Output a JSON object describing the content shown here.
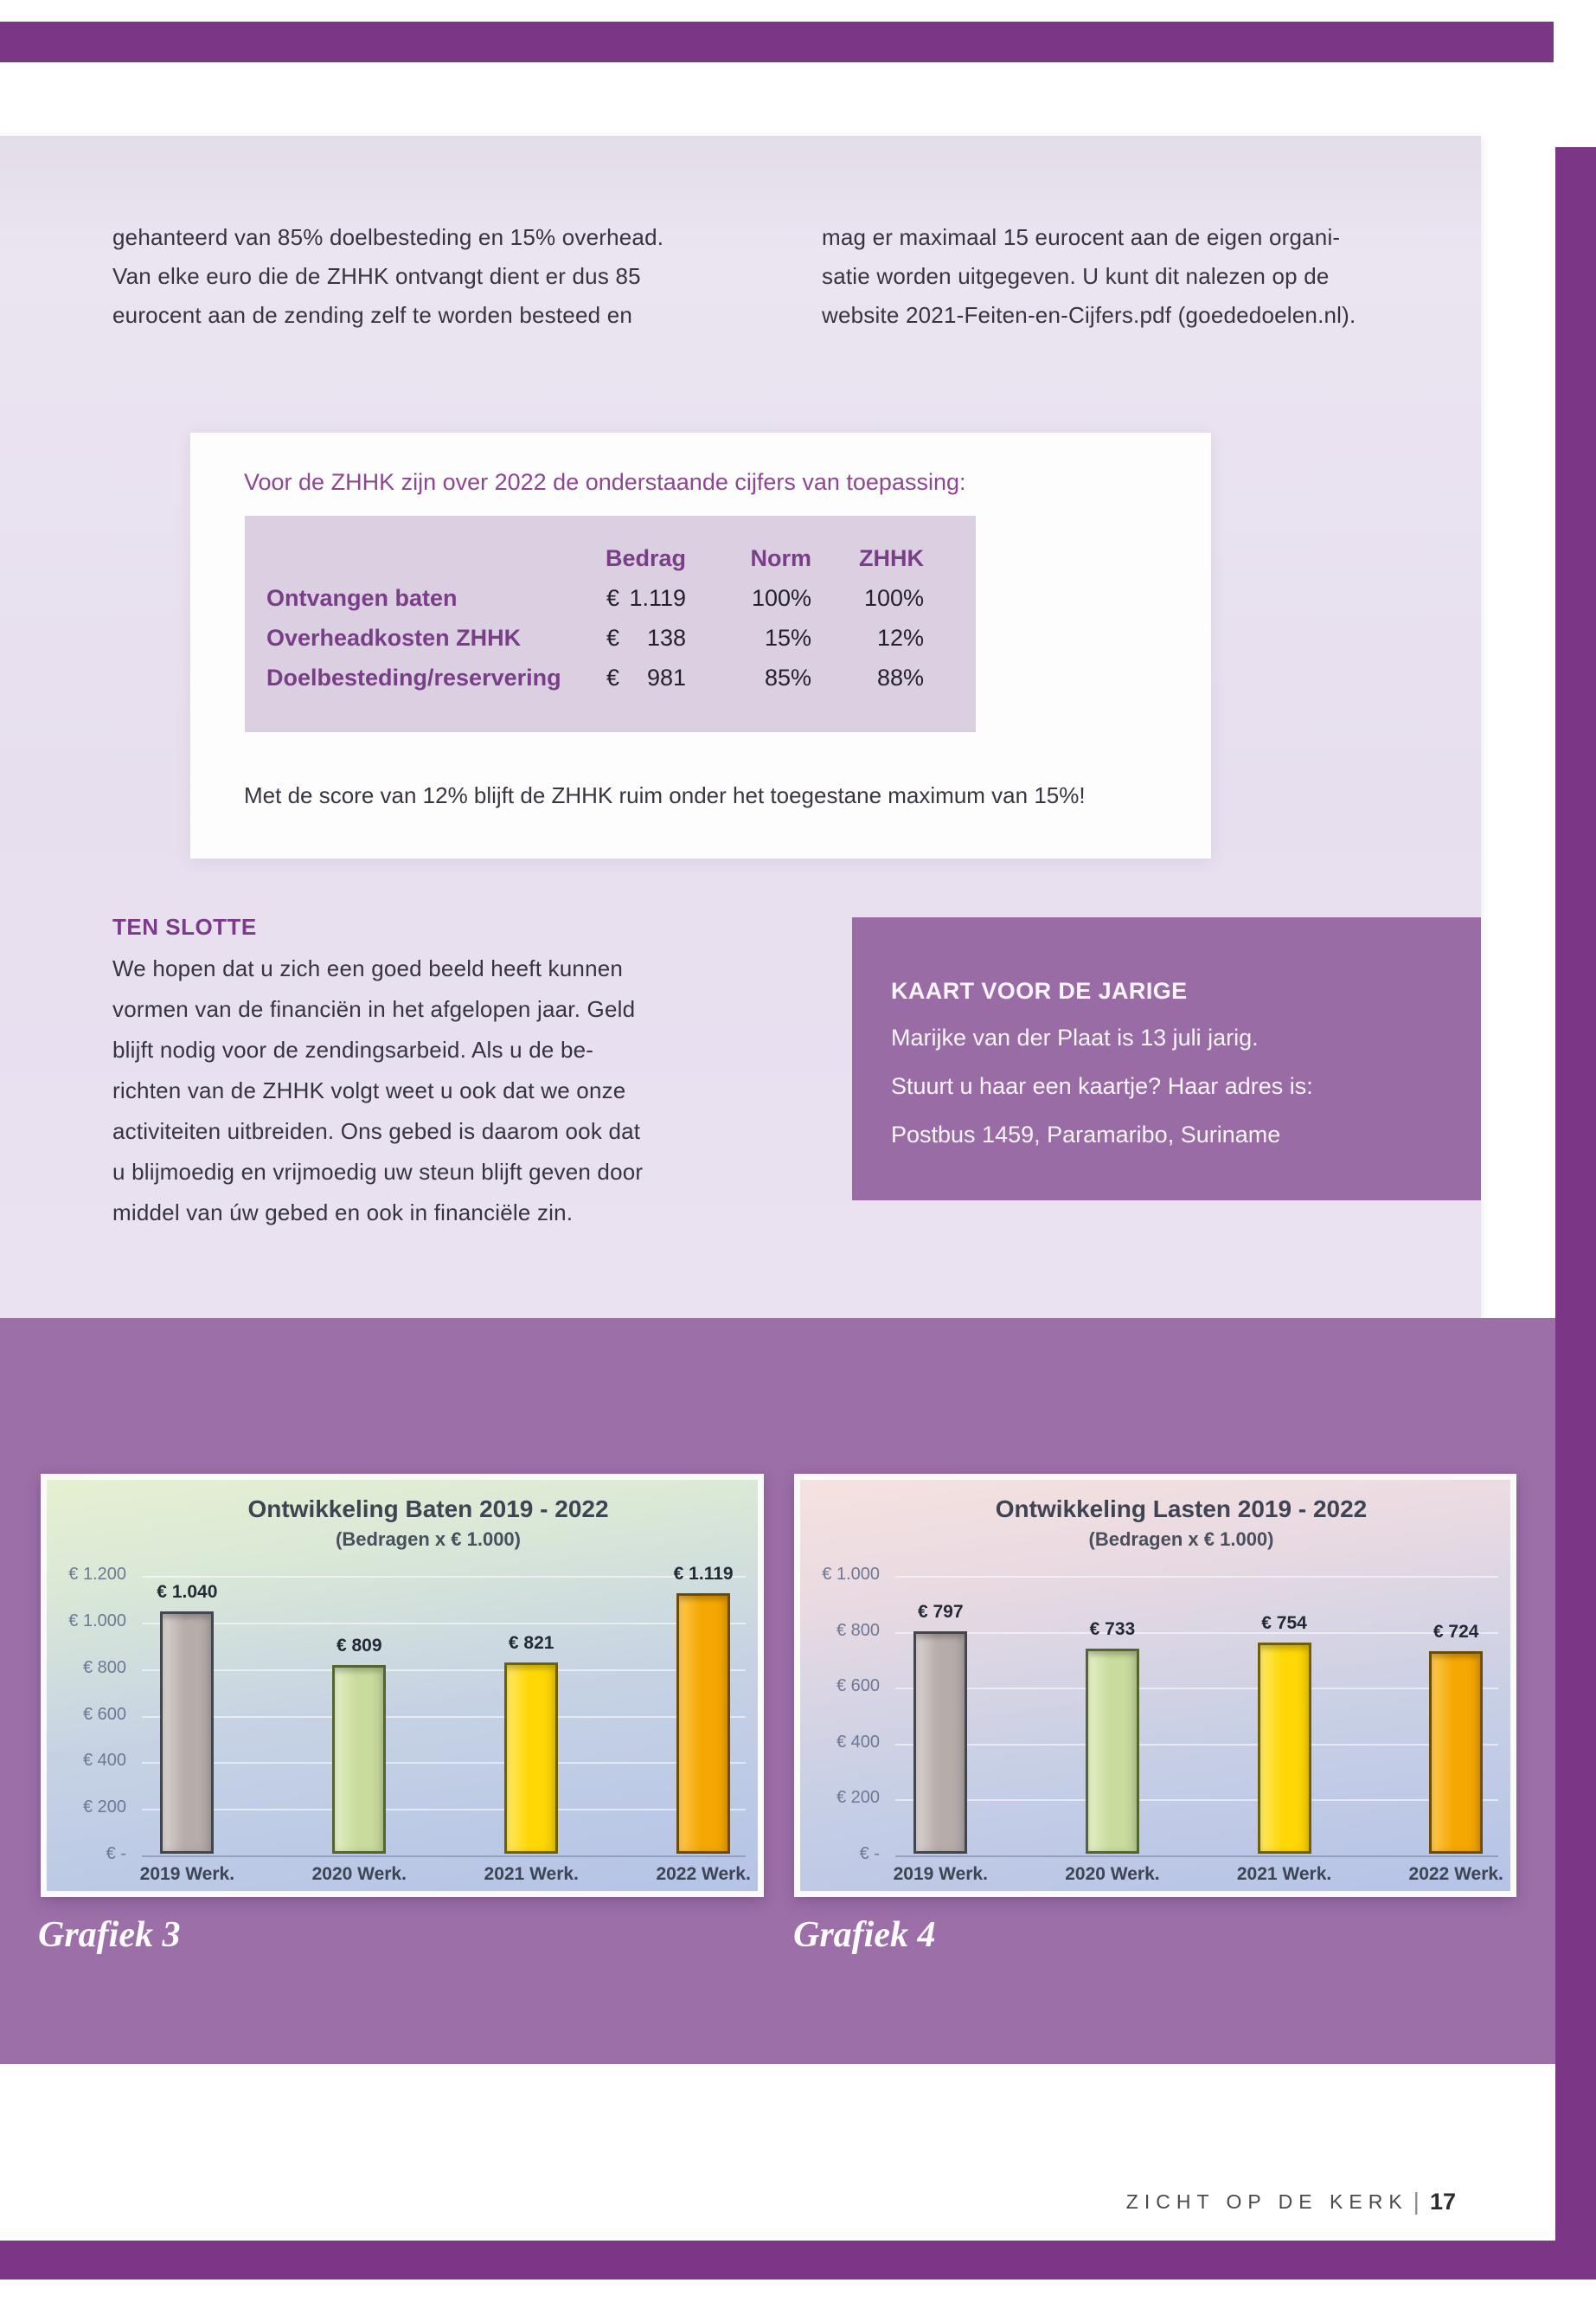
{
  "colors": {
    "accent_dark": "#7b3685",
    "accent_mid_band": "#9d6fa9",
    "kaart_box_bg": "#9a6ca5",
    "panel_bg": "#e8e1ef",
    "table_bg": "#dbd0e2",
    "heading_purple": "#8d4791",
    "label_purple": "#7a3d88",
    "text_dark": "#38333f"
  },
  "intro": {
    "left_lines": [
      "gehanteerd van 85% doelbesteding en 15% overhead.",
      "Van elke euro die de ZHHK ontvangt dient er dus 85",
      "eurocent aan de zending zelf te worden besteed en"
    ],
    "right_lines": [
      "mag er maximaal 15 eurocent aan de eigen organi-",
      "satie worden uitgegeven. U kunt dit nalezen op de",
      "website 2021-Feiten-en-Cijfers.pdf (goededoelen.nl)."
    ]
  },
  "info_box": {
    "heading": "Voor de ZHHK zijn over 2022 de onderstaande cijfers van toepassing:",
    "table": {
      "currency": "€",
      "columns": [
        "Bedrag",
        "Norm",
        "ZHHK"
      ],
      "rows": [
        {
          "label": "Ontvangen baten",
          "bedrag": "1.119",
          "norm": "100%",
          "zhhk": "100%"
        },
        {
          "label": "Overheadkosten ZHHK",
          "bedrag": "138",
          "norm": "15%",
          "zhhk": "12%"
        },
        {
          "label": "Doelbesteding/reservering",
          "bedrag": "981",
          "norm": "85%",
          "zhhk": "88%"
        }
      ]
    },
    "note": "Met de score van 12% blijft de ZHHK ruim onder het toegestane maximum van 15%!"
  },
  "ten_slotte": {
    "heading": "TEN SLOTTE",
    "lines": [
      "We hopen dat u zich een goed beeld heeft kunnen",
      "vormen van de financiën in het afgelopen jaar. Geld",
      "blijft nodig voor de zendingsarbeid. Als u de be-",
      "richten van de ZHHK volgt weet u ook dat we onze",
      "activiteiten uitbreiden. Ons gebed is daarom ook dat",
      "u blijmoedig en vrijmoedig uw steun blijft geven door",
      "middel van úw gebed en ook in financiële zin."
    ]
  },
  "kaart": {
    "heading": "KAART VOOR DE JARIGE",
    "lines": [
      "Marijke van der Plaat is 13 juli jarig.",
      "Stuurt u haar een kaartje? Haar adres is:",
      "Postbus 1459, Paramaribo, Suriname"
    ]
  },
  "chart_data": [
    {
      "type": "bar",
      "title": "Ontwikkeling Baten 2019 - 2022",
      "subtitle": "(Bedragen x € 1.000)",
      "caption": "Grafiek 3",
      "xlabel": "",
      "ylabel": "",
      "grid": true,
      "legend": "none",
      "categories": [
        "2019 Werk.",
        "2020 Werk.",
        "2021 Werk.",
        "2022 Werk."
      ],
      "values": [
        1040,
        809,
        821,
        1119
      ],
      "value_labels": [
        "€ 1.040",
        "€ 809",
        "€ 821",
        "€ 1.119"
      ],
      "ylim": [
        0,
        1200
      ],
      "y_ticks": [
        {
          "label": "€ 1.200",
          "value": 1200
        },
        {
          "label": "€ 1.000",
          "value": 1000
        },
        {
          "label": "€ 800",
          "value": 800
        },
        {
          "label": "€ 600",
          "value": 600
        },
        {
          "label": "€ 400",
          "value": 400
        },
        {
          "label": "€ 200",
          "value": 200
        },
        {
          "label": "€ -",
          "value": 0
        }
      ],
      "bar_colors": [
        {
          "fill": "#b6adaa",
          "edge": "#42464f",
          "hi": "#d9d3cf"
        },
        {
          "fill": "#c9dc9e",
          "edge": "#55652e",
          "hi": "#e4efc6"
        },
        {
          "fill": "#ffd806",
          "edge": "#6f6005",
          "hi": "#ffe763"
        },
        {
          "fill": "#f5a802",
          "edge": "#6e4b04",
          "hi": "#fdc84e"
        }
      ]
    },
    {
      "type": "bar",
      "title": "Ontwikkeling Lasten  2019 - 2022",
      "subtitle": "(Bedragen x € 1.000)",
      "caption": "Grafiek 4",
      "xlabel": "",
      "ylabel": "",
      "grid": true,
      "legend": "none",
      "categories": [
        "2019 Werk.",
        "2020 Werk.",
        "2021 Werk.",
        "2022 Werk."
      ],
      "values": [
        797,
        733,
        754,
        724
      ],
      "value_labels": [
        "€ 797",
        "€ 733",
        "€ 754",
        "€ 724"
      ],
      "ylim": [
        0,
        1000
      ],
      "y_ticks": [
        {
          "label": "€ 1.000",
          "value": 1000
        },
        {
          "label": "€ 800",
          "value": 800
        },
        {
          "label": "€ 600",
          "value": 600
        },
        {
          "label": "€ 400",
          "value": 400
        },
        {
          "label": "€ 200",
          "value": 200
        },
        {
          "label": "€ -",
          "value": 0
        }
      ],
      "bar_colors": [
        {
          "fill": "#b6adaa",
          "edge": "#42464f",
          "hi": "#d9d3cf"
        },
        {
          "fill": "#c9dc9e",
          "edge": "#55652e",
          "hi": "#e4efc6"
        },
        {
          "fill": "#ffd806",
          "edge": "#6f6005",
          "hi": "#ffe763"
        },
        {
          "fill": "#f5a802",
          "edge": "#6e4b04",
          "hi": "#fdc84e"
        }
      ]
    }
  ],
  "footer": {
    "magazine": "ZICHT OP DE KERK",
    "separator": "|",
    "page_number": "17"
  }
}
